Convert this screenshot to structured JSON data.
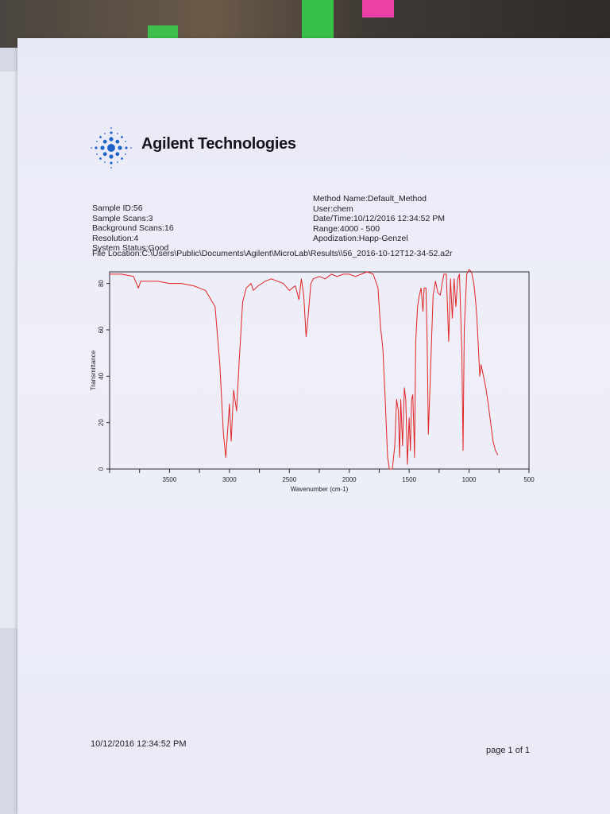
{
  "header": {
    "brand": "Agilent Technologies"
  },
  "meta_left": [
    "Sample ID:56",
    "Sample Scans:3",
    "Background Scans:16",
    "Resolution:4",
    "System Status:Good"
  ],
  "meta_right": [
    "Method Name:Default_Method",
    "User:chem",
    "Date/Time:10/12/2016 12:34:52 PM",
    "Range:4000 - 500",
    "Apodization:Happ-Genzel"
  ],
  "file_location": "File Location:C:\\Users\\Public\\Documents\\Agilent\\MicroLab\\Results\\\\56_2016-10-12T12-34-52.a2r",
  "footer": {
    "date": "10/12/2016 12:34:52 PM",
    "page": "page 1 of 1"
  },
  "colors": {
    "trace": "#e02424",
    "logo_blue": "#1f63c7"
  },
  "chart_data": {
    "type": "line",
    "title": "",
    "xlabel": "Wavenumber (cm-1)",
    "ylabel": "Transmittance",
    "xlim": [
      4000,
      500
    ],
    "ylim": [
      0,
      85
    ],
    "x_ticks": [
      3500,
      3000,
      2500,
      2000,
      1500,
      1000,
      500
    ],
    "y_ticks": [
      0,
      20,
      40,
      60,
      80
    ],
    "grid": false,
    "series": [
      {
        "values": [
          [
            4000,
            84
          ],
          [
            3900,
            84
          ],
          [
            3800,
            83
          ],
          [
            3760,
            78
          ],
          [
            3740,
            81
          ],
          [
            3700,
            81
          ],
          [
            3600,
            81
          ],
          [
            3500,
            80
          ],
          [
            3400,
            80
          ],
          [
            3300,
            79
          ],
          [
            3200,
            77
          ],
          [
            3120,
            70
          ],
          [
            3080,
            45
          ],
          [
            3050,
            15
          ],
          [
            3030,
            5
          ],
          [
            3000,
            28
          ],
          [
            2985,
            12
          ],
          [
            2965,
            34
          ],
          [
            2940,
            25
          ],
          [
            2920,
            45
          ],
          [
            2890,
            72
          ],
          [
            2860,
            78
          ],
          [
            2820,
            80
          ],
          [
            2800,
            77
          ],
          [
            2760,
            79
          ],
          [
            2700,
            81
          ],
          [
            2650,
            82
          ],
          [
            2600,
            81
          ],
          [
            2550,
            80
          ],
          [
            2500,
            77
          ],
          [
            2450,
            79
          ],
          [
            2420,
            73
          ],
          [
            2400,
            82
          ],
          [
            2380,
            75
          ],
          [
            2360,
            57
          ],
          [
            2345,
            65
          ],
          [
            2320,
            80
          ],
          [
            2300,
            82
          ],
          [
            2250,
            83
          ],
          [
            2200,
            82
          ],
          [
            2150,
            84
          ],
          [
            2100,
            83
          ],
          [
            2050,
            84
          ],
          [
            2000,
            84
          ],
          [
            1950,
            83
          ],
          [
            1900,
            84
          ],
          [
            1850,
            85
          ],
          [
            1800,
            84
          ],
          [
            1760,
            78
          ],
          [
            1740,
            62
          ],
          [
            1720,
            52
          ],
          [
            1700,
            30
          ],
          [
            1680,
            5
          ],
          [
            1665,
            0
          ],
          [
            1650,
            0
          ],
          [
            1640,
            0
          ],
          [
            1620,
            10
          ],
          [
            1605,
            30
          ],
          [
            1590,
            25
          ],
          [
            1580,
            5
          ],
          [
            1570,
            30
          ],
          [
            1555,
            10
          ],
          [
            1540,
            35
          ],
          [
            1528,
            30
          ],
          [
            1515,
            2
          ],
          [
            1500,
            22
          ],
          [
            1490,
            8
          ],
          [
            1480,
            30
          ],
          [
            1470,
            32
          ],
          [
            1460,
            15
          ],
          [
            1455,
            5
          ],
          [
            1445,
            55
          ],
          [
            1430,
            70
          ],
          [
            1415,
            75
          ],
          [
            1400,
            78
          ],
          [
            1385,
            68
          ],
          [
            1375,
            78
          ],
          [
            1360,
            78
          ],
          [
            1350,
            55
          ],
          [
            1340,
            15
          ],
          [
            1330,
            30
          ],
          [
            1310,
            60
          ],
          [
            1300,
            75
          ],
          [
            1280,
            81
          ],
          [
            1260,
            76
          ],
          [
            1240,
            75
          ],
          [
            1225,
            80
          ],
          [
            1210,
            84
          ],
          [
            1190,
            84
          ],
          [
            1180,
            70
          ],
          [
            1170,
            55
          ],
          [
            1155,
            82
          ],
          [
            1140,
            65
          ],
          [
            1125,
            82
          ],
          [
            1110,
            70
          ],
          [
            1095,
            82
          ],
          [
            1080,
            84
          ],
          [
            1060,
            50
          ],
          [
            1050,
            8
          ],
          [
            1040,
            60
          ],
          [
            1020,
            84
          ],
          [
            1000,
            86
          ],
          [
            980,
            85
          ],
          [
            960,
            80
          ],
          [
            945,
            72
          ],
          [
            935,
            65
          ],
          [
            925,
            55
          ],
          [
            910,
            40
          ],
          [
            900,
            45
          ],
          [
            880,
            40
          ],
          [
            860,
            35
          ],
          [
            840,
            28
          ],
          [
            820,
            20
          ],
          [
            800,
            12
          ],
          [
            780,
            8
          ],
          [
            760,
            6
          ]
        ]
      }
    ]
  }
}
